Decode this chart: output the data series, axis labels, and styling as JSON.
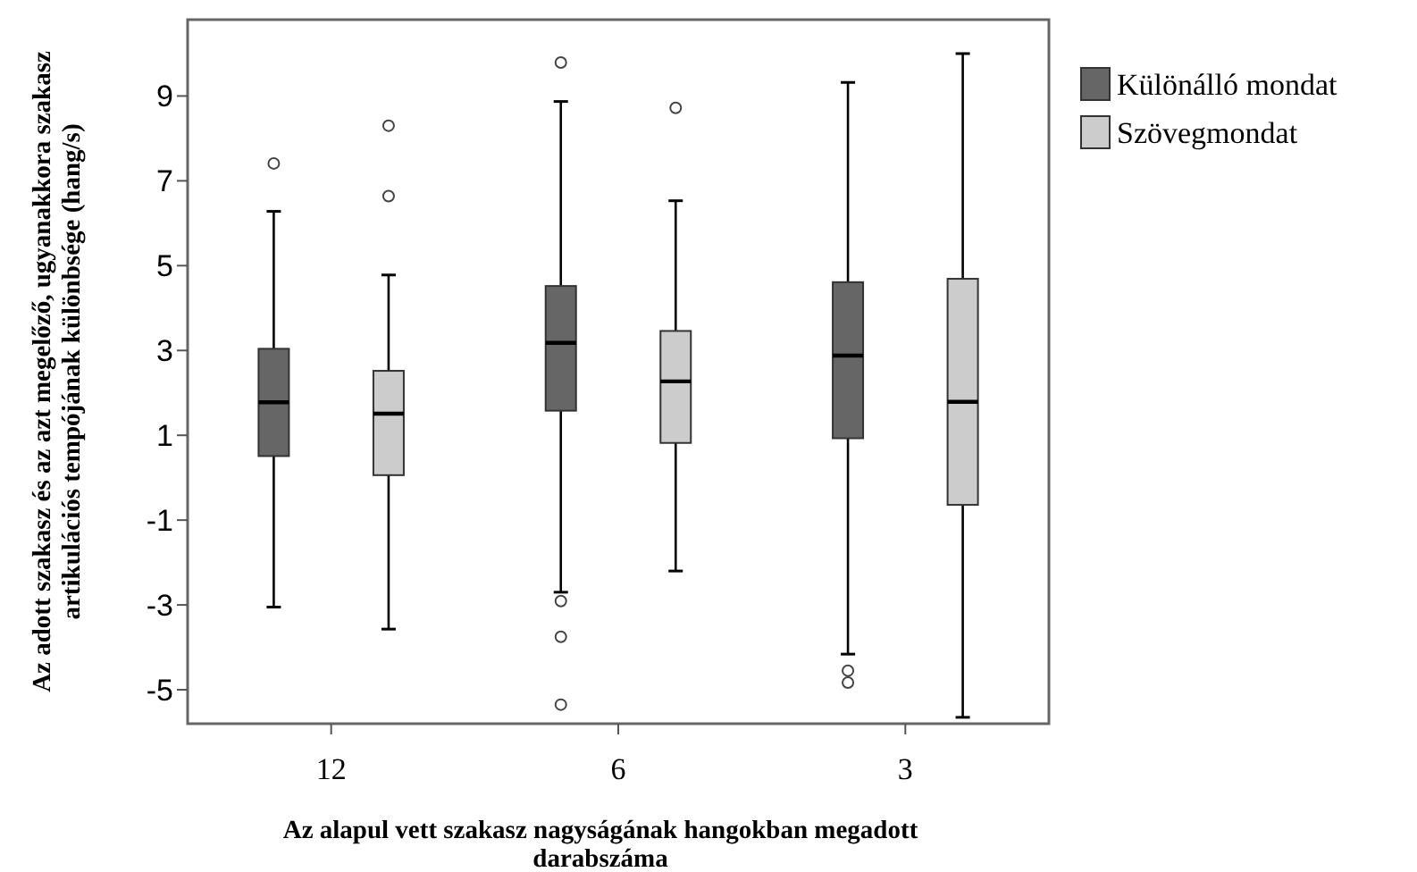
{
  "chart_data": {
    "type": "box",
    "xlabel": "Az alapul vett szakasz nagyságának hangokban megadott darabszáma",
    "ylabel": "Az adott szakasz és az azt megelőző, ugyanakkora szakasz artikulációs tempójának különbsége (hang/s)",
    "categories": [
      "12",
      "6",
      "3"
    ],
    "ylim": [
      -5.8,
      10.8
    ],
    "yticks": [
      -5,
      -3,
      -1,
      1,
      3,
      5,
      7,
      9
    ],
    "grid": false,
    "legend": "right",
    "series": [
      {
        "name": "Különálló mondat",
        "color": "#666666",
        "boxes": [
          {
            "low": -3.05,
            "q1": 0.51,
            "median": 1.78,
            "q3": 3.04,
            "high": 6.28,
            "outliers": [
              7.41
            ]
          },
          {
            "low": -2.7,
            "q1": 1.58,
            "median": 3.18,
            "q3": 4.52,
            "high": 8.87,
            "outliers": [
              9.79,
              -2.91,
              -3.75,
              -5.35
            ]
          },
          {
            "low": -4.16,
            "q1": 0.93,
            "median": 2.88,
            "q3": 4.61,
            "high": 9.32,
            "outliers": [
              -4.55,
              -4.83
            ]
          }
        ]
      },
      {
        "name": "Szövegmondat",
        "color": "#cccccc",
        "boxes": [
          {
            "low": -3.57,
            "q1": 0.06,
            "median": 1.51,
            "q3": 2.52,
            "high": 4.78,
            "outliers": [
              8.3,
              6.64
            ]
          },
          {
            "low": -2.2,
            "q1": 0.82,
            "median": 2.27,
            "q3": 3.46,
            "high": 6.53,
            "outliers": [
              8.72
            ]
          },
          {
            "low": -5.65,
            "q1": -0.64,
            "median": 1.79,
            "q3": 4.69,
            "high": 10.0
          }
        ]
      }
    ]
  }
}
